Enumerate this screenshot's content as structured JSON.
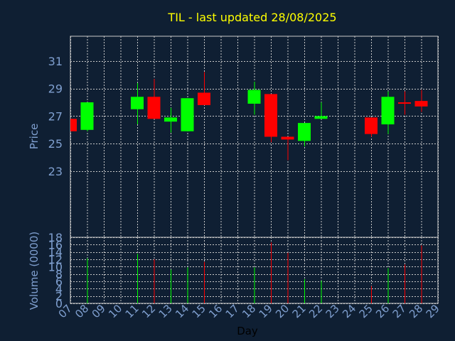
{
  "chart_data": [
    {
      "type": "candlestick",
      "title": "TIL - last updated 28/08/2025",
      "ylabel": "Price",
      "ylim": [
        18.2,
        32.8
      ],
      "yticks": [
        "23",
        "25",
        "27",
        "29",
        "31"
      ],
      "grid": true,
      "colors": {
        "up": "#00ff00",
        "down": "#ff0000",
        "background": "#0f1f33",
        "text": "#7f9fcf",
        "title": "#ffff00"
      },
      "candles": [
        {
          "day": "07",
          "open": 26.8,
          "close": 25.9,
          "high": 26.8,
          "low": 25.9
        },
        {
          "day": "08",
          "open": 26.0,
          "close": 28.0,
          "high": 28.0,
          "low": 25.9
        },
        {
          "day": "11",
          "open": 27.5,
          "close": 28.4,
          "high": 29.4,
          "low": 26.4
        },
        {
          "day": "12",
          "open": 28.4,
          "close": 26.8,
          "high": 29.7,
          "low": 26.8
        },
        {
          "day": "13",
          "open": 26.6,
          "close": 26.9,
          "high": 27.6,
          "low": 25.8
        },
        {
          "day": "14",
          "open": 25.9,
          "close": 28.3,
          "high": 28.3,
          "low": 25.9
        },
        {
          "day": "15",
          "open": 28.7,
          "close": 27.8,
          "high": 30.2,
          "low": 27.8
        },
        {
          "day": "18",
          "open": 27.9,
          "close": 28.9,
          "high": 29.5,
          "low": 27.1
        },
        {
          "day": "19",
          "open": 28.6,
          "close": 25.5,
          "high": 28.6,
          "low": 25.1
        },
        {
          "day": "20",
          "open": 25.5,
          "close": 25.3,
          "high": 25.5,
          "low": 23.8
        },
        {
          "day": "21",
          "open": 25.2,
          "close": 26.5,
          "high": 26.5,
          "low": 24.8
        },
        {
          "day": "22",
          "open": 26.8,
          "close": 27.0,
          "high": 28.0,
          "low": 26.8
        },
        {
          "day": "25",
          "open": 26.9,
          "close": 25.7,
          "high": 26.9,
          "low": 25.5
        },
        {
          "day": "26",
          "open": 26.4,
          "close": 28.4,
          "high": 28.8,
          "low": 25.7
        },
        {
          "day": "27",
          "open": 28.0,
          "close": 27.9,
          "high": 28.8,
          "low": 27.1
        },
        {
          "day": "28",
          "open": 28.1,
          "close": 27.7,
          "high": 28.9,
          "low": 27.3
        }
      ]
    },
    {
      "type": "bar",
      "ylabel": "Volume (0000)",
      "xlabel": "Day",
      "ylim": [
        0,
        18
      ],
      "yticks": [
        "0",
        "2",
        "4",
        "6",
        "8",
        "10",
        "12",
        "14",
        "16",
        "18"
      ],
      "xticks": [
        "07",
        "08",
        "09",
        "10",
        "11",
        "12",
        "13",
        "14",
        "15",
        "16",
        "17",
        "18",
        "19",
        "20",
        "21",
        "22",
        "23",
        "24",
        "25",
        "26",
        "27",
        "28",
        "29"
      ],
      "grid": true,
      "bars": [
        {
          "day": "08",
          "value": 12.3,
          "dir": "up"
        },
        {
          "day": "11",
          "value": 13.5,
          "dir": "up"
        },
        {
          "day": "12",
          "value": 12.0,
          "dir": "down"
        },
        {
          "day": "13",
          "value": 9.2,
          "dir": "up"
        },
        {
          "day": "14",
          "value": 9.8,
          "dir": "up"
        },
        {
          "day": "15",
          "value": 11.3,
          "dir": "down"
        },
        {
          "day": "18",
          "value": 9.8,
          "dir": "up"
        },
        {
          "day": "19",
          "value": 16.6,
          "dir": "down"
        },
        {
          "day": "20",
          "value": 13.8,
          "dir": "down"
        },
        {
          "day": "21",
          "value": 6.6,
          "dir": "up"
        },
        {
          "day": "22",
          "value": 6.2,
          "dir": "up"
        },
        {
          "day": "25",
          "value": 4.7,
          "dir": "down"
        },
        {
          "day": "26",
          "value": 9.6,
          "dir": "up"
        },
        {
          "day": "27",
          "value": 10.6,
          "dir": "down"
        },
        {
          "day": "28",
          "value": 15.8,
          "dir": "down"
        }
      ]
    }
  ]
}
